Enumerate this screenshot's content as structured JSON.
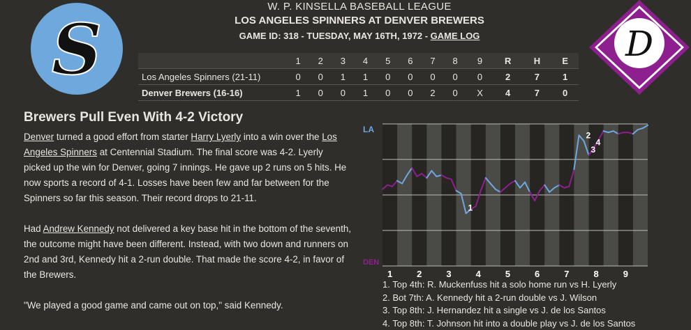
{
  "header": {
    "league": "W. P. KINSELLA BASEBALL LEAGUE",
    "matchup": "LOS ANGELES SPINNERS AT DENVER BREWERS",
    "game_info": "GAME ID: 318 - TUESDAY, MAY 16TH, 1972 - ",
    "game_log_link": "GAME LOG"
  },
  "logos": {
    "away_letter": "S",
    "home_letter": "D",
    "away_color": "#6fa8dc",
    "home_color": "#8e1f8f"
  },
  "linescore": {
    "innings": [
      "1",
      "2",
      "3",
      "4",
      "5",
      "6",
      "7",
      "8",
      "9"
    ],
    "totals_headers": [
      "R",
      "H",
      "E"
    ],
    "teams": [
      {
        "name": "Los Angeles Spinners (21-11)",
        "innings": [
          "0",
          "0",
          "1",
          "1",
          "0",
          "0",
          "0",
          "0",
          "0"
        ],
        "totals": [
          "2",
          "7",
          "1"
        ]
      },
      {
        "name": "Denver Brewers (16-16)",
        "innings": [
          "1",
          "0",
          "0",
          "1",
          "0",
          "0",
          "2",
          "0",
          "X"
        ],
        "totals": [
          "4",
          "7",
          "0"
        ]
      }
    ]
  },
  "article": {
    "headline": "Brewers Pull Even With 4-2 Victory",
    "p1": [
      {
        "text": "Denver",
        "link": true
      },
      {
        "text": " turned a good effort from starter ",
        "link": false
      },
      {
        "text": "Harry Lyerly",
        "link": true
      },
      {
        "text": " into a win over the ",
        "link": false
      },
      {
        "text": "Los Angeles Spinners",
        "link": true
      },
      {
        "text": " at Centennial Stadium. The final score was 4-2. Lyerly picked up the win for Denver, going 7 innings. He gave up 2 runs on 5 hits. He now sports a record of 4-1. Losses have been few and far between for the Spinners so far this season. Their record drops to 21-11.",
        "link": false
      }
    ],
    "p2": [
      {
        "text": "Had ",
        "link": false
      },
      {
        "text": "Andrew Kennedy",
        "link": true
      },
      {
        "text": " not delivered a key base hit in the bottom of the seventh, the outcome might have been different. Instead, with two down and runners on 2nd and 3rd, Kennedy hit a 2-run double. That made the score 4-2, in favor of the Brewers.",
        "link": false
      }
    ],
    "p3": "\"We played a good game and came out on top,\" said Kennedy."
  },
  "chart_data": {
    "type": "line",
    "y_top_label": "LA",
    "y_bottom_label": "DEN",
    "away_color": "#6fa8dc",
    "home_color": "#8e1f8f",
    "ylim": [
      0,
      1
    ],
    "x_ticks": [
      "1",
      "2",
      "3",
      "4",
      "5",
      "6",
      "7",
      "8",
      "9"
    ],
    "values": [
      0.46,
      0.43,
      0.44,
      0.4,
      0.42,
      0.36,
      0.31,
      0.37,
      0.35,
      0.38,
      0.33,
      0.37,
      0.36,
      0.38,
      0.39,
      0.47,
      0.49,
      0.63,
      0.6,
      0.58,
      0.47,
      0.38,
      0.42,
      0.46,
      0.48,
      0.45,
      0.42,
      0.4,
      0.45,
      0.41,
      0.48,
      0.54,
      0.47,
      0.43,
      0.48,
      0.45,
      0.43,
      0.45,
      0.44,
      0.32,
      0.08,
      0.12,
      0.22,
      0.17,
      0.11,
      0.05,
      0.06,
      0.05,
      0.07,
      0.06,
      0.06,
      0.07,
      0.04,
      0.03,
      0.01
    ],
    "event_markers": [
      {
        "label": "1",
        "index": 17
      },
      {
        "label": "2",
        "index": 41
      },
      {
        "label": "3",
        "index": 42
      },
      {
        "label": "4",
        "index": 43
      }
    ]
  },
  "events": [
    "1. Top 4th: R. Muckenfuss hit a solo home run vs H. Lyerly",
    "2. Bot 7th: A. Kennedy hit a 2-run double vs J. Wilson",
    "3. Top 8th: J. Hernandez hit a single vs J. de los Santos",
    "4. Top 8th: T. Johnson hit into a double play vs J. de los Santos"
  ]
}
